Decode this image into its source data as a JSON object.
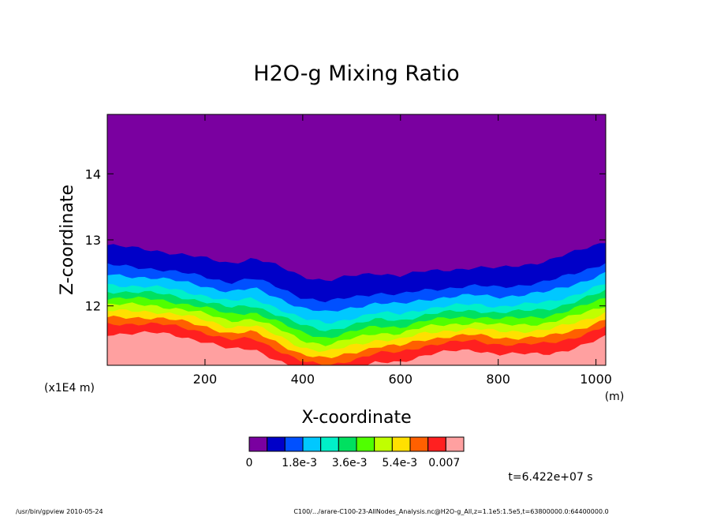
{
  "chart_data": {
    "type": "heatmap",
    "title": "H2O-g Mixing Ratio",
    "xlabel": "X-coordinate",
    "ylabel": "Z-coordinate",
    "x_unit": "(m)",
    "y_unit": "(x1E4 m)",
    "xlim": [
      0,
      1020
    ],
    "ylim": [
      11.1,
      14.9
    ],
    "x_ticks": [
      "200",
      "400",
      "600",
      "800",
      "1000"
    ],
    "x_tick_values": [
      200,
      400,
      600,
      800,
      1000
    ],
    "y_ticks": [
      "12",
      "13",
      "14"
    ],
    "y_tick_values": [
      12,
      13,
      14
    ],
    "colorbar": {
      "colors": [
        "#7a00a0",
        "#0000c8",
        "#0050ff",
        "#00c8ff",
        "#00f0c8",
        "#00e060",
        "#50ff00",
        "#c0ff00",
        "#ffe000",
        "#ff6000",
        "#ff2020",
        "#ffa0a0"
      ],
      "labels": [
        "0",
        "1.8e-3",
        "3.6e-3",
        "5.4e-3",
        "0.007"
      ],
      "label_values": [
        0,
        0.0018,
        0.0036,
        0.0054,
        0.007
      ],
      "vmin": 0,
      "vmax": 0.0077
    },
    "contour_profile": {
      "x": [
        0,
        100,
        200,
        250,
        300,
        350,
        400,
        450,
        500,
        550,
        600,
        650,
        700,
        750,
        800,
        850,
        900,
        950,
        1020
      ],
      "top_of_moist_layer_z": [
        12.92,
        12.84,
        12.72,
        12.65,
        12.72,
        12.6,
        12.45,
        12.38,
        12.45,
        12.5,
        12.46,
        12.52,
        12.55,
        12.58,
        12.57,
        12.62,
        12.68,
        12.8,
        12.98
      ],
      "layer_offsets_z": [
        0,
        -0.3,
        -0.45,
        -0.6,
        -0.7,
        -0.8,
        -0.9,
        -1.0,
        -1.1,
        -1.2,
        -1.35
      ]
    },
    "annotation": "t=6.422e+07 s"
  },
  "footer": {
    "left": "/usr/bin/gpview  2010-05-24",
    "right": "C100/.../arare-C100-23-AllNodes_Analysis.nc@H2O-g_All,z=1.1e5:1.5e5,t=63800000.0:64400000.0"
  }
}
